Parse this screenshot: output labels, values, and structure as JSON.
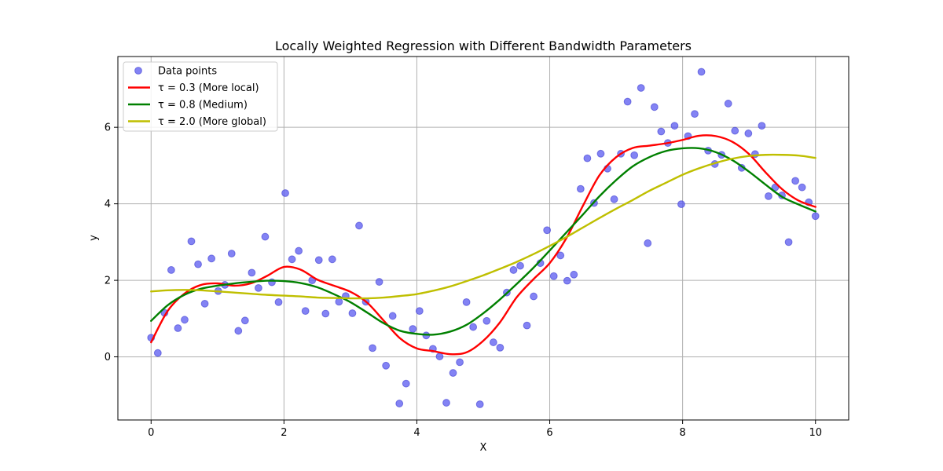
{
  "chart_data": {
    "type": "scatter",
    "title": "Locally Weighted Regression with Different Bandwidth Parameters",
    "xlabel": "X",
    "ylabel": "y",
    "xlim": [
      -0.5,
      10.5
    ],
    "ylim": [
      -1.65,
      7.85
    ],
    "xticks": [
      0,
      2,
      4,
      6,
      8,
      10
    ],
    "yticks": [
      0,
      2,
      4,
      6
    ],
    "grid": true,
    "legend_position": "top-left",
    "scatter": {
      "name": "Data points",
      "color": "#5a5af0",
      "x": [
        0.0,
        0.101,
        0.202,
        0.303,
        0.404,
        0.505,
        0.606,
        0.707,
        0.808,
        0.909,
        1.01,
        1.111,
        1.212,
        1.313,
        1.414,
        1.515,
        1.616,
        1.717,
        1.818,
        1.919,
        2.02,
        2.121,
        2.222,
        2.323,
        2.424,
        2.525,
        2.626,
        2.727,
        2.828,
        2.929,
        3.03,
        3.131,
        3.232,
        3.333,
        3.434,
        3.535,
        3.636,
        3.737,
        3.838,
        3.939,
        4.04,
        4.141,
        4.242,
        4.343,
        4.444,
        4.545,
        4.646,
        4.747,
        4.848,
        4.949,
        5.051,
        5.152,
        5.253,
        5.354,
        5.455,
        5.556,
        5.657,
        5.758,
        5.859,
        5.96,
        6.061,
        6.162,
        6.263,
        6.364,
        6.465,
        6.566,
        6.667,
        6.768,
        6.869,
        6.97,
        7.071,
        7.172,
        7.273,
        7.374,
        7.475,
        7.576,
        7.677,
        7.778,
        7.879,
        7.98,
        8.081,
        8.182,
        8.283,
        8.384,
        8.485,
        8.586,
        8.687,
        8.788,
        8.889,
        8.99,
        9.091,
        9.192,
        9.293,
        9.394,
        9.495,
        9.596,
        9.697,
        9.798,
        9.899,
        10.0
      ],
      "y": [
        0.5,
        0.1,
        1.15,
        2.27,
        0.75,
        0.97,
        3.02,
        2.42,
        1.39,
        2.57,
        1.72,
        1.88,
        2.7,
        0.68,
        0.95,
        2.2,
        1.8,
        3.14,
        1.95,
        1.43,
        4.28,
        2.55,
        2.77,
        1.2,
        2.0,
        2.53,
        1.13,
        2.55,
        1.44,
        1.59,
        1.14,
        3.43,
        1.44,
        0.23,
        1.96,
        -0.23,
        1.07,
        -1.22,
        -0.7,
        0.73,
        1.2,
        0.56,
        0.21,
        0.01,
        -1.2,
        -0.42,
        -0.14,
        1.43,
        0.78,
        -1.24,
        0.94,
        0.38,
        0.24,
        1.68,
        2.27,
        2.38,
        0.82,
        1.58,
        2.45,
        3.31,
        2.11,
        2.65,
        1.99,
        2.15,
        4.39,
        5.19,
        4.02,
        5.31,
        4.92,
        4.12,
        5.31,
        6.67,
        5.27,
        7.03,
        2.97,
        6.53,
        5.89,
        5.59,
        6.04,
        3.99,
        5.77,
        6.35,
        7.45,
        5.39,
        5.04,
        5.28,
        6.62,
        5.91,
        4.94,
        5.84,
        5.3,
        6.04,
        4.2,
        4.43,
        4.22,
        3.0,
        4.6,
        4.43,
        4.04,
        3.68
      ]
    },
    "series": [
      {
        "name": "τ = 0.3 (More local)",
        "color": "#ff0000",
        "x": [
          0.0,
          0.25,
          0.5,
          0.75,
          1.0,
          1.25,
          1.5,
          1.75,
          2.0,
          2.25,
          2.5,
          2.75,
          3.0,
          3.25,
          3.5,
          3.75,
          4.0,
          4.25,
          4.5,
          4.75,
          5.0,
          5.25,
          5.5,
          5.75,
          6.0,
          6.25,
          6.5,
          6.75,
          7.0,
          7.25,
          7.5,
          7.75,
          8.0,
          8.25,
          8.5,
          8.75,
          9.0,
          9.25,
          9.5,
          9.75,
          10.0
        ],
        "y": [
          0.38,
          1.2,
          1.65,
          1.88,
          1.92,
          1.86,
          1.92,
          2.12,
          2.35,
          2.28,
          2.02,
          1.86,
          1.7,
          1.42,
          0.95,
          0.48,
          0.22,
          0.15,
          0.07,
          0.12,
          0.42,
          0.9,
          1.55,
          2.02,
          2.45,
          3.1,
          3.95,
          4.75,
          5.22,
          5.46,
          5.52,
          5.58,
          5.67,
          5.78,
          5.77,
          5.62,
          5.3,
          4.82,
          4.38,
          4.08,
          3.92
        ]
      },
      {
        "name": "τ = 0.8 (Medium)",
        "color": "#008000",
        "x": [
          0.0,
          0.25,
          0.5,
          0.75,
          1.0,
          1.25,
          1.5,
          1.75,
          2.0,
          2.25,
          2.5,
          2.75,
          3.0,
          3.25,
          3.5,
          3.75,
          4.0,
          4.25,
          4.5,
          4.75,
          5.0,
          5.25,
          5.5,
          5.75,
          6.0,
          6.25,
          6.5,
          6.75,
          7.0,
          7.25,
          7.5,
          7.75,
          8.0,
          8.25,
          8.5,
          8.75,
          9.0,
          9.25,
          9.5,
          9.75,
          10.0
        ],
        "y": [
          0.94,
          1.35,
          1.62,
          1.78,
          1.86,
          1.92,
          1.96,
          1.99,
          1.98,
          1.93,
          1.82,
          1.64,
          1.43,
          1.16,
          0.88,
          0.68,
          0.6,
          0.58,
          0.66,
          0.84,
          1.14,
          1.5,
          1.9,
          2.32,
          2.78,
          3.25,
          3.72,
          4.2,
          4.62,
          4.98,
          5.22,
          5.38,
          5.45,
          5.45,
          5.35,
          5.14,
          4.84,
          4.5,
          4.18,
          3.98,
          3.8
        ]
      },
      {
        "name": "τ = 2.0 (More global)",
        "color": "#bfbf00",
        "x": [
          0.0,
          0.25,
          0.5,
          0.75,
          1.0,
          1.25,
          1.5,
          1.75,
          2.0,
          2.25,
          2.5,
          2.75,
          3.0,
          3.25,
          3.5,
          3.75,
          4.0,
          4.25,
          4.5,
          4.75,
          5.0,
          5.25,
          5.5,
          5.75,
          6.0,
          6.25,
          6.5,
          6.75,
          7.0,
          7.25,
          7.5,
          7.75,
          8.0,
          8.25,
          8.5,
          8.75,
          9.0,
          9.25,
          9.5,
          9.75,
          10.0
        ],
        "y": [
          1.71,
          1.74,
          1.75,
          1.74,
          1.71,
          1.68,
          1.65,
          1.62,
          1.6,
          1.58,
          1.55,
          1.54,
          1.53,
          1.53,
          1.55,
          1.59,
          1.64,
          1.73,
          1.84,
          1.98,
          2.13,
          2.3,
          2.48,
          2.68,
          2.9,
          3.13,
          3.38,
          3.63,
          3.87,
          4.1,
          4.34,
          4.55,
          4.76,
          4.93,
          5.07,
          5.18,
          5.25,
          5.28,
          5.28,
          5.26,
          5.2
        ]
      }
    ]
  }
}
